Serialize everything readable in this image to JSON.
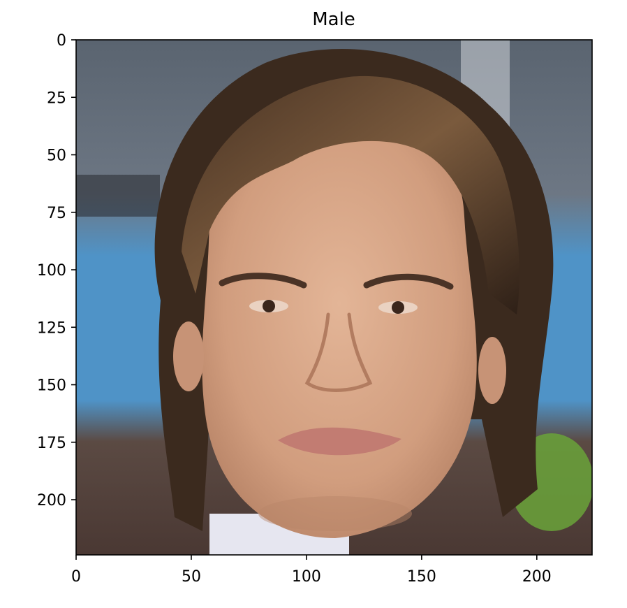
{
  "chart_data": {
    "type": "image",
    "title": "Male",
    "xlabel": "",
    "ylabel": "",
    "xlim": [
      0,
      224
    ],
    "ylim": [
      224,
      0
    ],
    "x_ticks": [
      0,
      50,
      100,
      150,
      200
    ],
    "y_ticks": [
      0,
      25,
      50,
      75,
      100,
      125,
      150,
      175,
      200
    ],
    "image_description_icon": "portrait-photo",
    "grid": false
  },
  "colors": {
    "background_top": "#5a6470",
    "background_blue": "#4f93c7",
    "background_bottom": "#5b4a43",
    "skin": "#d9a888",
    "skin_shadow": "#b98568",
    "hair": "#3b2a1e",
    "hair_highlight": "#7a5a3d",
    "lips": "#c27c72",
    "eyes": "#3a261c",
    "shirt": "#e6e6f0",
    "greenery": "#6aa33a"
  }
}
